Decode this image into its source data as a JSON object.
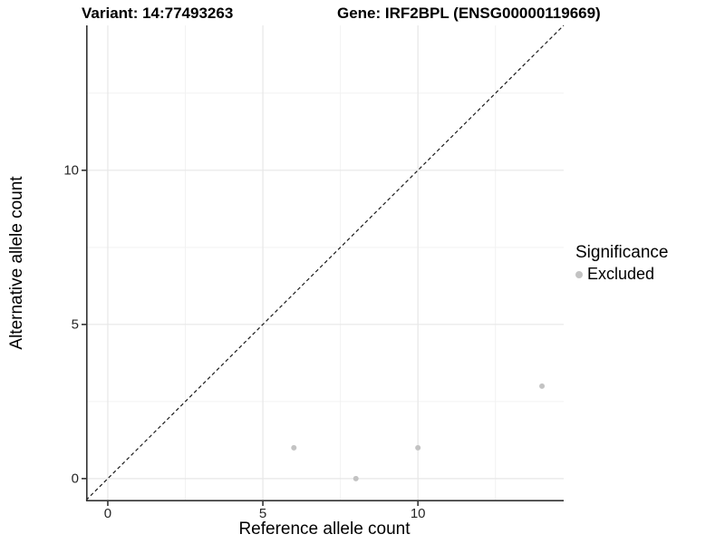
{
  "chart_data": {
    "type": "scatter",
    "titles": {
      "variant": "Variant: 14:77493263",
      "gene": "Gene: IRF2BPL (ENSG00000119669)"
    },
    "xlabel": "Reference allele count",
    "ylabel": "Alternative allele count",
    "x_ticks": [
      0,
      5,
      10
    ],
    "y_ticks": [
      0,
      5,
      10
    ],
    "x_minor_ticks": [
      2.5,
      7.5,
      12.5
    ],
    "y_minor_ticks": [
      2.5,
      7.5,
      12.5
    ],
    "xlim": [
      -0.7,
      14.7
    ],
    "ylim": [
      -0.74,
      14.7
    ],
    "grid": true,
    "points": [
      {
        "x": 6,
        "y": 1,
        "significance": "Excluded"
      },
      {
        "x": 8,
        "y": 0,
        "significance": "Excluded"
      },
      {
        "x": 10,
        "y": 1,
        "significance": "Excluded"
      },
      {
        "x": 14,
        "y": 3,
        "significance": "Excluded"
      }
    ],
    "reference_line": {
      "type": "identity",
      "style": "dashed",
      "color": "#1a1a1a"
    },
    "legend": {
      "position": "right",
      "title": "Significance",
      "items": [
        {
          "label": "Excluded",
          "color": "#c3c3c3",
          "marker": "circle"
        }
      ]
    },
    "colors": {
      "point": "#c3c3c3",
      "grid_major": "#e7e7e7",
      "grid_minor": "#f2f2f2",
      "axis_line": "#333333",
      "background": "#ffffff"
    }
  }
}
